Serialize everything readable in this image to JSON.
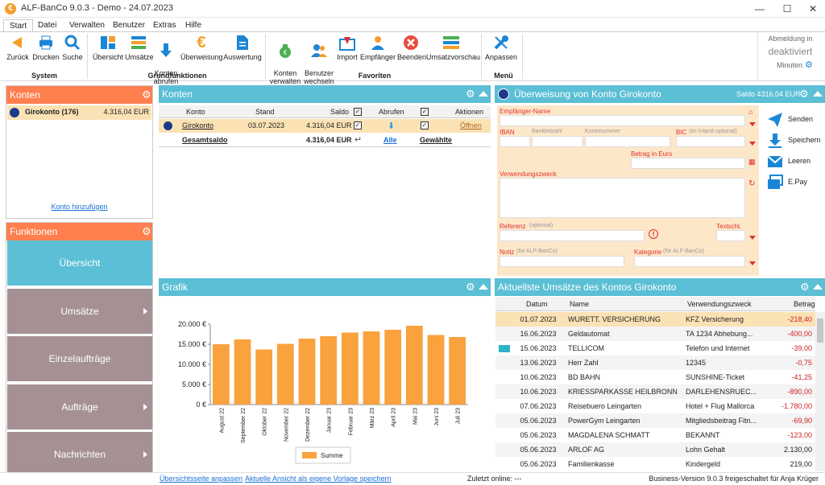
{
  "window": {
    "title": "ALF-BanCo 9.0.3 - Demo  -  24.07.2023",
    "logo": "€"
  },
  "menu_tabs": [
    "Start",
    "Datei",
    "Verwalten",
    "Benutzer",
    "Extras",
    "Hilfe"
  ],
  "ribbon": {
    "system": [
      "Zurück",
      "Drucken",
      "Suche"
    ],
    "grundfunktionen": [
      "Übersicht",
      "Umsätze",
      "Konten\nabrufen",
      "Überweisung",
      "Auswertung"
    ],
    "favoriten": [
      "Konten\nverwalten",
      "Benutzer\nwechseln",
      "Import",
      "Empfänger",
      "Beenden",
      "Umsatzvorschau"
    ],
    "menue": [
      "Anpassen"
    ],
    "groups": [
      "System",
      "Grundfunktionen",
      "Favoriten",
      "Menü"
    ],
    "autolock": {
      "line1": "Abmeldung in",
      "line2": "deaktiviert",
      "line3": "Minuten"
    }
  },
  "konten_panel": {
    "title": "Konten",
    "account_name": "Girokonto (176)",
    "account_balance": "4.316,04 EUR",
    "add_link": "Konto hinzufügen"
  },
  "funktionen": {
    "title": "Funktionen",
    "items": [
      "Übersicht",
      "Umsätze",
      "Einzelaufträge",
      "Aufträge",
      "Nachrichten"
    ]
  },
  "konten_table": {
    "title": "Konten",
    "headers": [
      "Konto",
      "Stand",
      "Saldo",
      "Abrufen",
      "Aktionen"
    ],
    "row": {
      "konto": "Girokonto",
      "stand": "03.07.2023",
      "saldo": "4.316,04 EUR",
      "action": "Öffnen"
    },
    "total": {
      "label": "Gesamtsaldo",
      "saldo": "4.316,04 EUR",
      "alle": "Alle",
      "gewaehlte": "Gewählte"
    }
  },
  "transfer": {
    "title": "Überweisung von Konto Girokonto",
    "saldo": "Saldo 4316,04 EUR",
    "labels": {
      "empfaenger": "Empfänger-Name",
      "iban": "IBAN",
      "blz": "Bankleitzahl",
      "kto": "Kontonummer",
      "bic": "BIC",
      "bic_note": "(im Inland optional)",
      "betrag": "Betrag in Euro",
      "zweck": "Verwendungszweck",
      "referenz": "Referenz",
      "ref_note": "(optional)",
      "textschl": "Textschl.",
      "notiz": "Notiz",
      "notiz_note": "(für ALF-BanCo)",
      "kategorie": "Kategorie",
      "kat_note": "(für ALF-BanCo)"
    },
    "actions": [
      "Senden",
      "Speichern",
      "Leeren",
      "E.Pay"
    ]
  },
  "grafik": {
    "title": "Grafik",
    "legend": "Summe"
  },
  "chart_data": {
    "type": "bar",
    "categories": [
      "August 22",
      "September 22",
      "Oktober 22",
      "November 22",
      "Dezember 22",
      "Januar 23",
      "Februar 23",
      "März 23",
      "April 23",
      "Mai 23",
      "Juni 23",
      "Juli 23"
    ],
    "series": [
      {
        "name": "Summe",
        "values": [
          15000,
          16200,
          13700,
          15100,
          16400,
          17000,
          17900,
          18200,
          18600,
          19600,
          17300,
          16800
        ]
      }
    ],
    "ylim": [
      0,
      20000
    ],
    "yticks": [
      "0 €",
      "5.000 €",
      "10.000 €",
      "15.000 €",
      "20.000 €"
    ],
    "color": "#f9a23e"
  },
  "umsaetze": {
    "title": "Aktuellste Umsätze des Kontos Girokonto",
    "headers": [
      "Datum",
      "Name",
      "Verwendungszweck",
      "Betrag"
    ],
    "rows": [
      [
        "01.07.2023",
        "WURETT. VERSICHERUNG",
        "KFZ Versicherung",
        "-218,40"
      ],
      [
        "16.06.2023",
        "Geldautomat",
        "TA 1234 Abhebung...",
        "-400,00"
      ],
      [
        "15.06.2023",
        "TELLICOM",
        "Telefon und Internet",
        "-39,00"
      ],
      [
        "13.06.2023",
        "Herr Zahl",
        "12345",
        "-0,75"
      ],
      [
        "10.06.2023",
        "BD BAHN",
        "SUNSHINE-Ticket",
        "-41,25"
      ],
      [
        "10.06.2023",
        "KRIESSPARKASSE HEILBRONN",
        "DARLEHENSRUEC...",
        "-890,00"
      ],
      [
        "07.06.2023",
        "Reisebuero Leingarten",
        "Hotel + Flug Mallorca",
        "-1.780,00"
      ],
      [
        "05.06.2023",
        "PowerGym Leingarten",
        "Mitgliedsbeitrag Fitn...",
        "-69,90"
      ],
      [
        "05.06.2023",
        "MAGDALENA SCHMATT",
        "BEKANNT",
        "-123,00"
      ],
      [
        "05.06.2023",
        "ARLOF AG",
        "Lohn Gehalt",
        "2.130,00"
      ],
      [
        "05.06.2023",
        "Familienkasse",
        "Kindergeld",
        "219,00"
      ]
    ]
  },
  "footer": {
    "customize": "Übersichtsseite anpassen",
    "save_view": "Aktuelle Ansicht als eigene Vorlage speichern",
    "last_online": "Zuletzt online: ---",
    "version": "Business-Version 9.0.3 freigeschaltet für Anja Krüger"
  }
}
